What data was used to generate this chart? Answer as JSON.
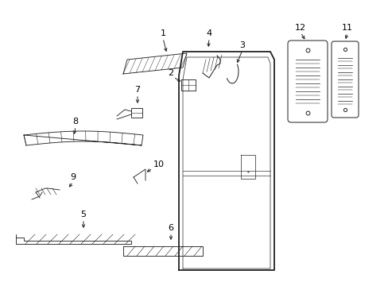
{
  "bg_color": "#ffffff",
  "fig_width": 4.89,
  "fig_height": 3.6,
  "dpi": 100,
  "lc": "#222222"
}
